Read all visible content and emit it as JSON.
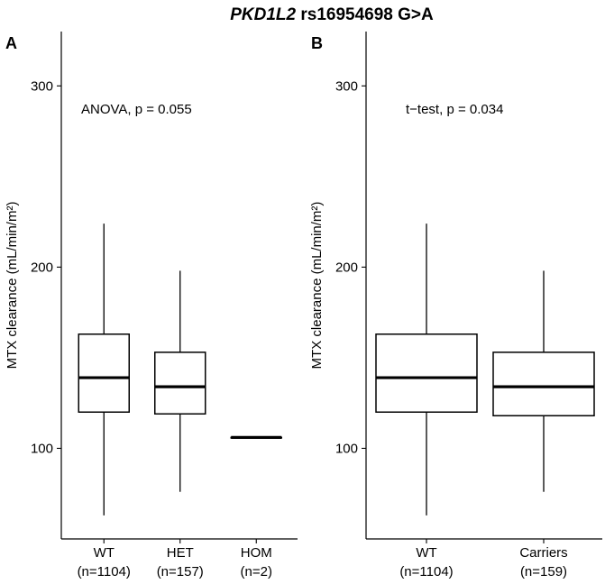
{
  "figure": {
    "title_gene": "PKD1L2",
    "title_rest": " rs16954698 G>A"
  },
  "chart_data": [
    {
      "type": "box",
      "panel_label": "A",
      "ylabel": "MTX clearance (mL/min/m²)",
      "ylim": [
        50,
        330
      ],
      "yticks": [
        100,
        200,
        300
      ],
      "annotation": "ANOVA, p = 0.055",
      "categories": [
        {
          "name": "WT",
          "n_label": "(n=1104)",
          "min": 63,
          "q1": 120,
          "median": 139,
          "q3": 163,
          "max": 224
        },
        {
          "name": "HET",
          "n_label": "(n=157)",
          "min": 76,
          "q1": 119,
          "median": 134,
          "q3": 153,
          "max": 198
        },
        {
          "name": "HOM",
          "n_label": "(n=2)",
          "min": 106,
          "q1": 106,
          "median": 106,
          "q3": 106,
          "max": 106
        }
      ]
    },
    {
      "type": "box",
      "panel_label": "B",
      "ylabel": "MTX clearance (mL/min/m²)",
      "ylim": [
        50,
        330
      ],
      "yticks": [
        100,
        200,
        300
      ],
      "annotation": "t−test, p = 0.034",
      "categories": [
        {
          "name": "WT",
          "n_label": "(n=1104)",
          "min": 63,
          "q1": 120,
          "median": 139,
          "q3": 163,
          "max": 224
        },
        {
          "name": "Carriers",
          "n_label": "(n=159)",
          "min": 76,
          "q1": 118,
          "median": 134,
          "q3": 153,
          "max": 198
        }
      ]
    }
  ]
}
